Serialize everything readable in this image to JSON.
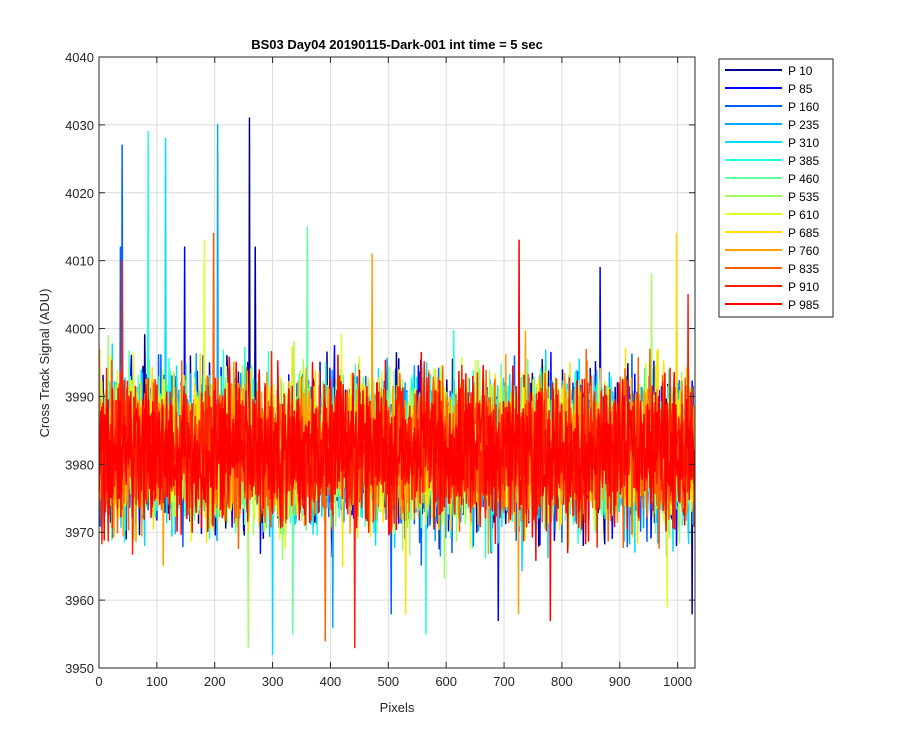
{
  "chart_data": {
    "type": "line",
    "title": "BS03 Day04 20190115-Dark-001 int time = 5 sec",
    "xlabel": "Pixels",
    "ylabel": "Cross Track Signal (ADU)",
    "xlim": [
      0,
      1030
    ],
    "ylim": [
      3950,
      4040
    ],
    "xticks": [
      0,
      100,
      200,
      300,
      400,
      500,
      600,
      700,
      800,
      900,
      1000
    ],
    "yticks": [
      3950,
      3960,
      3970,
      3980,
      3990,
      4000,
      4010,
      4020,
      4030,
      4040
    ],
    "grid": true,
    "legend_position": "outside-top-right",
    "points_per_series": 1030,
    "mean_level": 3982,
    "series": [
      {
        "name": "P 10",
        "color": "#00008F",
        "peaks": [
          {
            "x": 260,
            "y": 4031
          },
          {
            "x": 270,
            "y": 4012
          }
        ],
        "troughs": [
          {
            "x": 1025,
            "y": 3958
          }
        ]
      },
      {
        "name": "P 85",
        "color": "#0000FF",
        "peaks": [
          {
            "x": 148,
            "y": 4012
          },
          {
            "x": 866,
            "y": 4009
          }
        ],
        "troughs": [
          {
            "x": 690,
            "y": 3957
          }
        ]
      },
      {
        "name": "P 160",
        "color": "#0060FF",
        "peaks": [
          {
            "x": 40,
            "y": 4027
          },
          {
            "x": 37,
            "y": 4012
          }
        ],
        "troughs": [
          {
            "x": 505,
            "y": 3958
          }
        ]
      },
      {
        "name": "P 235",
        "color": "#00A8FF",
        "peaks": [
          {
            "x": 205,
            "y": 4030
          }
        ],
        "troughs": [
          {
            "x": 404,
            "y": 3956
          }
        ]
      },
      {
        "name": "P 310",
        "color": "#00DCFF",
        "peaks": [
          {
            "x": 115,
            "y": 4028
          }
        ],
        "troughs": [
          {
            "x": 300,
            "y": 3952
          }
        ]
      },
      {
        "name": "P 385",
        "color": "#20FFDF",
        "peaks": [
          {
            "x": 85,
            "y": 4029
          }
        ],
        "troughs": [
          {
            "x": 565,
            "y": 3955
          }
        ]
      },
      {
        "name": "P 460",
        "color": "#60FFA0",
        "peaks": [
          {
            "x": 360,
            "y": 4015
          }
        ],
        "troughs": [
          {
            "x": 335,
            "y": 3955
          }
        ]
      },
      {
        "name": "P 535",
        "color": "#9FFF60",
        "peaks": [
          {
            "x": 955,
            "y": 4008
          }
        ],
        "troughs": [
          {
            "x": 258,
            "y": 3953
          }
        ]
      },
      {
        "name": "P 610",
        "color": "#DFFF20",
        "peaks": [
          {
            "x": 182,
            "y": 4013
          }
        ],
        "troughs": [
          {
            "x": 982,
            "y": 3959
          }
        ]
      },
      {
        "name": "P 685",
        "color": "#FFE000",
        "peaks": [
          {
            "x": 998,
            "y": 4014
          }
        ],
        "troughs": [
          {
            "x": 530,
            "y": 3958
          }
        ]
      },
      {
        "name": "P 760",
        "color": "#FFA000",
        "peaks": [
          {
            "x": 472,
            "y": 4011
          }
        ],
        "troughs": [
          {
            "x": 725,
            "y": 3958
          }
        ]
      },
      {
        "name": "P 835",
        "color": "#FF6000",
        "peaks": [
          {
            "x": 198,
            "y": 4014
          }
        ],
        "troughs": [
          {
            "x": 391,
            "y": 3954
          }
        ]
      },
      {
        "name": "P 910",
        "color": "#FF2000",
        "peaks": [
          {
            "x": 40,
            "y": 4010
          },
          {
            "x": 1018,
            "y": 4005
          }
        ],
        "troughs": [
          {
            "x": 442,
            "y": 3953
          }
        ]
      },
      {
        "name": "P 985",
        "color": "#FF0000",
        "peaks": [
          {
            "x": 726,
            "y": 4013
          }
        ],
        "troughs": [
          {
            "x": 780,
            "y": 3957
          }
        ]
      }
    ]
  }
}
